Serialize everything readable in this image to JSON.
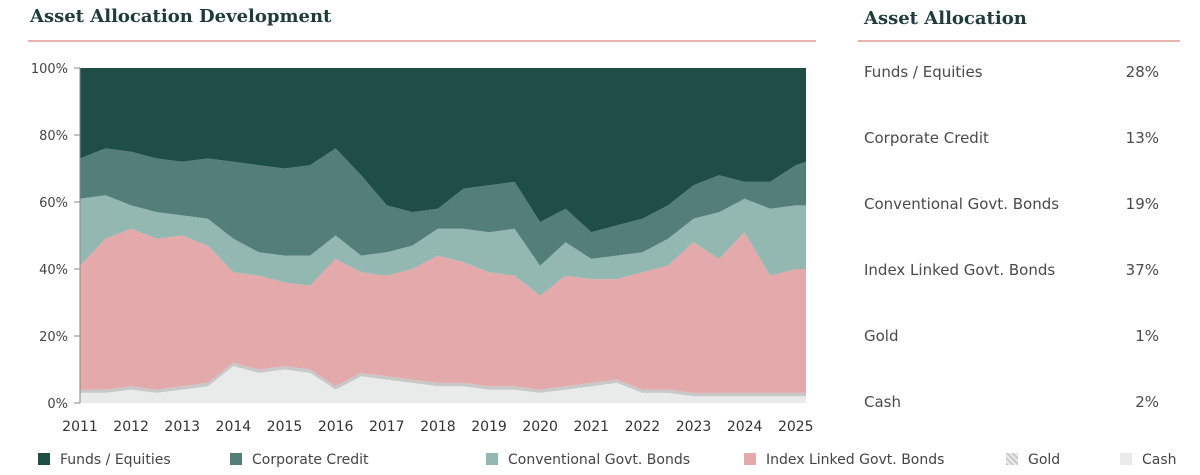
{
  "headings": {
    "development": "Asset Allocation Development",
    "allocation": "Asset Allocation"
  },
  "allocation": [
    {
      "label": "Funds / Equities",
      "value": "28%"
    },
    {
      "label": "Corporate Credit",
      "value": "13%"
    },
    {
      "label": "Conventional Govt. Bonds",
      "value": "19%"
    },
    {
      "label": "Index Linked Govt. Bonds",
      "value": "37%"
    },
    {
      "label": "Gold",
      "value": "1%"
    },
    {
      "label": "Cash",
      "value": "2%"
    }
  ],
  "colors": {
    "Funds / Equities": "#1e4e45",
    "Corporate Credit": "#537f78",
    "Conventional Govt. Bonds": "#93b8b1",
    "Index Linked Govt. Bonds": "#e4a9aa",
    "Gold": "#c8c8c8",
    "Cash": "#e9ebea"
  },
  "chart_data": {
    "type": "area",
    "stacked": true,
    "xlabel": "",
    "ylabel": "",
    "xlim": [
      2011,
      2025.2
    ],
    "ylim": [
      0,
      100
    ],
    "y_ticks": [
      "0%",
      "20%",
      "40%",
      "60%",
      "80%",
      "100%"
    ],
    "x_ticks": [
      "2011",
      "2012",
      "2013",
      "2014",
      "2015",
      "2016",
      "2017",
      "2018",
      "2019",
      "2020",
      "2021",
      "2022",
      "2023",
      "2024",
      "2025"
    ],
    "legend_position": "bottom",
    "x": [
      2011,
      2011.5,
      2012,
      2012.5,
      2013,
      2013.5,
      2014,
      2014.5,
      2015,
      2015.5,
      2016,
      2016.5,
      2017,
      2017.5,
      2018,
      2018.5,
      2019,
      2019.5,
      2020,
      2020.5,
      2021,
      2021.5,
      2022,
      2022.5,
      2023,
      2023.5,
      2024,
      2024.5,
      2025,
      2025.2
    ],
    "series": [
      {
        "name": "Cash",
        "values": [
          3,
          3,
          4,
          3,
          4,
          5,
          11,
          9,
          10,
          9,
          4,
          8,
          7,
          6,
          5,
          5,
          4,
          4,
          3,
          4,
          5,
          6,
          3,
          3,
          2,
          2,
          2,
          2,
          2,
          2
        ]
      },
      {
        "name": "Gold",
        "values": [
          1,
          1,
          1,
          1,
          1,
          1,
          1,
          1,
          1,
          1,
          1,
          1,
          1,
          1,
          1,
          1,
          1,
          1,
          1,
          1,
          1,
          1,
          1,
          1,
          1,
          1,
          1,
          1,
          1,
          1
        ]
      },
      {
        "name": "Index Linked Govt. Bonds",
        "values": [
          37,
          45,
          47,
          45,
          45,
          41,
          27,
          28,
          25,
          25,
          38,
          30,
          30,
          33,
          38,
          36,
          34,
          33,
          28,
          33,
          31,
          30,
          35,
          37,
          45,
          40,
          48,
          35,
          37,
          37
        ]
      },
      {
        "name": "Conventional Govt. Bonds",
        "values": [
          20,
          13,
          7,
          8,
          6,
          8,
          10,
          7,
          8,
          9,
          7,
          5,
          7,
          7,
          8,
          10,
          12,
          14,
          9,
          10,
          6,
          7,
          6,
          8,
          7,
          14,
          10,
          20,
          19,
          19
        ]
      },
      {
        "name": "Corporate Credit",
        "values": [
          12,
          14,
          16,
          16,
          16,
          18,
          23,
          26,
          26,
          27,
          26,
          24,
          14,
          10,
          6,
          12,
          14,
          14,
          13,
          10,
          8,
          9,
          10,
          10,
          10,
          11,
          5,
          8,
          12,
          13
        ]
      },
      {
        "name": "Funds / Equities",
        "values": [
          27,
          24,
          25,
          27,
          28,
          27,
          28,
          29,
          30,
          29,
          24,
          32,
          41,
          43,
          42,
          36,
          35,
          34,
          46,
          42,
          49,
          47,
          45,
          41,
          35,
          32,
          34,
          34,
          29,
          28
        ]
      }
    ]
  },
  "legend": [
    {
      "name": "Funds / Equities"
    },
    {
      "name": "Corporate Credit"
    },
    {
      "name": "Conventional Govt. Bonds"
    },
    {
      "name": "Index Linked Govt. Bonds"
    },
    {
      "name": "Gold"
    },
    {
      "name": "Cash"
    }
  ]
}
